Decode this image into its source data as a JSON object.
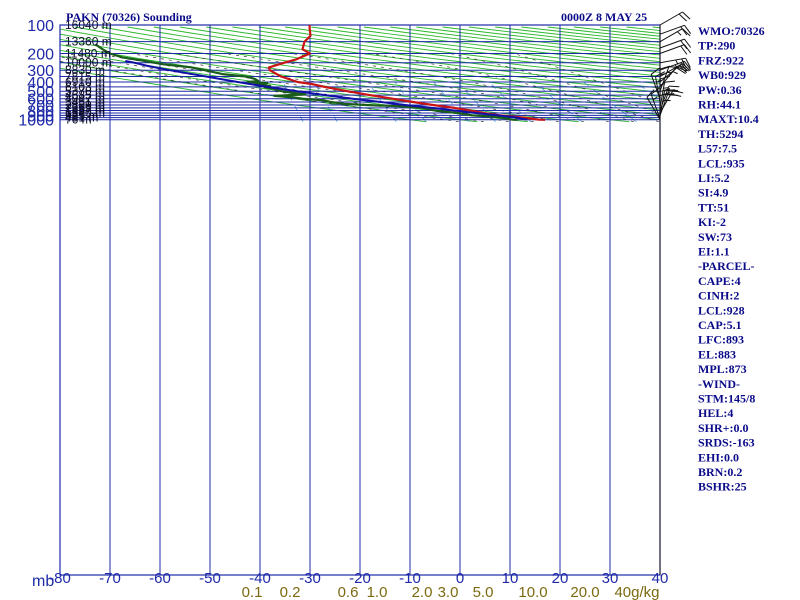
{
  "header": {
    "title": "PAKN (70326) Sounding",
    "time": "0000Z  8 MAY 25"
  },
  "colors": {
    "background": "#ffffff",
    "isobar_isotherm": "#1e2aa8",
    "dry_adiabat": "#2db82d",
    "moist_adiabat": "#3a3a3a",
    "mixing_ratio": "#4fa3d9",
    "temperature": "#c81414",
    "dewpoint": "#1a5c1a",
    "parcel": "#1010a8",
    "wind_barb": "#111111",
    "text": "#0b0b8a"
  },
  "chart_data": {
    "type": "skew-t",
    "title": "PAKN (70326) Sounding",
    "subtitle": "0000Z  8 MAY 25",
    "ylabel": "mb",
    "xlabel": "",
    "pressure_ticks": [
      "100",
      "200",
      "300",
      "400",
      "500",
      "600",
      "700",
      "800",
      "900",
      "1000"
    ],
    "pressure_values": [
      100,
      200,
      300,
      400,
      500,
      600,
      700,
      800,
      900,
      1000
    ],
    "height_levels": [
      {
        "label": "16040 m",
        "p": 100
      },
      {
        "label": "13360 m",
        "p": 150
      },
      {
        "label": "11480 m",
        "p": 200
      },
      {
        "label": "10000 m",
        "p": 250
      },
      {
        "label": "8830 m",
        "p": 300
      },
      {
        "label": "7815 m",
        "p": 350
      },
      {
        "label": "6910 m",
        "p": 400
      },
      {
        "label": "6103 m",
        "p": 450
      },
      {
        "label": "5370 m",
        "p": 500
      },
      {
        "label": "4685 m",
        "p": 550
      },
      {
        "label": "4047 m",
        "p": 600
      },
      {
        "label": "3451 m",
        "p": 650
      },
      {
        "label": "2889 m",
        "p": 700
      },
      {
        "label": "2359 m",
        "p": 750
      },
      {
        "label": "1857 m",
        "p": 800
      },
      {
        "label": "1380 m",
        "p": 850
      },
      {
        "label": "925 m",
        "p": 900
      },
      {
        "label": "491 m",
        "p": 950
      },
      {
        "label": "76 m",
        "p": 1000
      }
    ],
    "temperature_ticks": [
      "-80",
      "-70",
      "-60",
      "-50",
      "-40",
      "-30",
      "-20",
      "-10",
      "0",
      "10",
      "20",
      "30",
      "40"
    ],
    "temperature_values": [
      -80,
      -70,
      -60,
      -50,
      -40,
      -30,
      -20,
      -10,
      0,
      10,
      20,
      30,
      40
    ],
    "mixing_ratio_labels": [
      "0.1",
      "0.2",
      "0.6",
      "1.0",
      "2.0",
      "3.0",
      "5.0",
      "10.0",
      "20.0",
      "40g/kg"
    ],
    "mixing_ratio_values": [
      0.1,
      0.2,
      0.6,
      1.0,
      2.0,
      3.0,
      5.0,
      10.0,
      20.0,
      40.0
    ],
    "axis_ranges": {
      "pressure_mb": [
        100,
        1050
      ],
      "temperature_c": [
        -80,
        40
      ]
    },
    "grid": true,
    "series": [
      {
        "key": "temperature",
        "points": [
          [
            1002,
            7.0
          ],
          [
            1000,
            5.8
          ],
          [
            950,
            2.5
          ],
          [
            925,
            0.0
          ],
          [
            900,
            -2.5
          ],
          [
            850,
            -6.0
          ],
          [
            800,
            -9.0
          ],
          [
            750,
            -12.5
          ],
          [
            700,
            -17.0
          ],
          [
            650,
            -21.5
          ],
          [
            600,
            -26.0
          ],
          [
            550,
            -31.0
          ],
          [
            500,
            -36.0
          ],
          [
            450,
            -41.0
          ],
          [
            420,
            -44.0
          ],
          [
            400,
            -47.0
          ],
          [
            350,
            -51.0
          ],
          [
            300,
            -54.0
          ],
          [
            280,
            -54.5
          ],
          [
            250,
            -52.0
          ],
          [
            230,
            -50.0
          ],
          [
            200,
            -48.0
          ],
          [
            180,
            -50.0
          ],
          [
            150,
            -50.5
          ],
          [
            130,
            -50.0
          ],
          [
            110,
            -51.0
          ],
          [
            100,
            -51.5
          ]
        ]
      },
      {
        "key": "dewpoint",
        "points": [
          [
            1002,
            1.5
          ],
          [
            1000,
            0.5
          ],
          [
            950,
            -2.0
          ],
          [
            925,
            -4.0
          ],
          [
            900,
            -8.0
          ],
          [
            880,
            -9.5
          ],
          [
            850,
            -11.0
          ],
          [
            800,
            -16.0
          ],
          [
            750,
            -19.0
          ],
          [
            720,
            -24.0
          ],
          [
            700,
            -30.0
          ],
          [
            680,
            -35.0
          ],
          [
            650,
            -38.0
          ],
          [
            620,
            -40.0
          ],
          [
            600,
            -44.0
          ],
          [
            580,
            -46.0
          ],
          [
            560,
            -50.0
          ],
          [
            540,
            -44.0
          ],
          [
            510,
            -48.0
          ],
          [
            490,
            -50.0
          ],
          [
            470,
            -51.0
          ],
          [
            455,
            -53.0
          ],
          [
            440,
            -52.0
          ],
          [
            425,
            -55.0
          ],
          [
            410,
            -53.0
          ],
          [
            400,
            -57.0
          ],
          [
            390,
            -55.0
          ],
          [
            370,
            -56.0
          ],
          [
            350,
            -58.0
          ],
          [
            330,
            -63.0
          ],
          [
            300,
            -67.0
          ],
          [
            280,
            -70.0
          ],
          [
            260,
            -76.0
          ],
          [
            240,
            -80.0
          ],
          [
            220,
            -85.0
          ],
          [
            200,
            -88.0
          ],
          [
            180,
            -90.0
          ],
          [
            160,
            -92.0
          ]
        ]
      },
      {
        "key": "parcel",
        "points": [
          [
            1000,
            3.5
          ],
          [
            950,
            1.0
          ],
          [
            928,
            -0.5
          ],
          [
            900,
            -3.0
          ],
          [
            850,
            -7.5
          ],
          [
            800,
            -12.0
          ],
          [
            750,
            -17.0
          ],
          [
            700,
            -22.5
          ],
          [
            650,
            -28.0
          ],
          [
            600,
            -34.0
          ],
          [
            550,
            -40.0
          ],
          [
            500,
            -46.0
          ],
          [
            450,
            -52.5
          ],
          [
            400,
            -59.0
          ],
          [
            350,
            -66.0
          ],
          [
            300,
            -74.0
          ],
          [
            270,
            -79.0
          ],
          [
            250,
            -82.0
          ],
          [
            240,
            -84.0
          ]
        ]
      }
    ],
    "wind_profile": [
      {
        "p": 1000,
        "dir": 150,
        "speed": 10
      },
      {
        "p": 975,
        "dir": 160,
        "speed": 15
      },
      {
        "p": 950,
        "dir": 180,
        "speed": 20
      },
      {
        "p": 925,
        "dir": 190,
        "speed": 25
      },
      {
        "p": 900,
        "dir": 200,
        "speed": 25
      },
      {
        "p": 850,
        "dir": 210,
        "speed": 20
      },
      {
        "p": 800,
        "dir": 200,
        "speed": 20
      },
      {
        "p": 750,
        "dir": 190,
        "speed": 15
      },
      {
        "p": 700,
        "dir": 180,
        "speed": 15
      },
      {
        "p": 650,
        "dir": 170,
        "speed": 15
      },
      {
        "p": 600,
        "dir": 160,
        "speed": 10
      },
      {
        "p": 550,
        "dir": 180,
        "speed": 15
      },
      {
        "p": 500,
        "dir": 200,
        "speed": 15
      },
      {
        "p": 450,
        "dir": 220,
        "speed": 15
      },
      {
        "p": 400,
        "dir": 230,
        "speed": 20
      },
      {
        "p": 350,
        "dir": 240,
        "speed": 20
      },
      {
        "p": 300,
        "dir": 250,
        "speed": 25
      },
      {
        "p": 250,
        "dir": 260,
        "speed": 25
      },
      {
        "p": 200,
        "dir": 250,
        "speed": 20
      },
      {
        "p": 175,
        "dir": 250,
        "speed": 20
      },
      {
        "p": 150,
        "dir": 240,
        "speed": 15
      },
      {
        "p": 125,
        "dir": 250,
        "speed": 20
      },
      {
        "p": 100,
        "dir": 240,
        "speed": 20
      }
    ]
  },
  "indices": [
    "WMO:70326",
    "TP:290",
    "FRZ:922",
    "WB0:929",
    "PW:0.36",
    "RH:44.1",
    "MAXT:10.4",
    "TH:5294",
    "L57:7.5",
    "LCL:935",
    "LI:5.2",
    "SI:4.9",
    "TT:51",
    "KI:-2",
    "SW:73",
    "EI:1.1",
    "-PARCEL-",
    "CAPE:4",
    "CINH:2",
    "LCL:928",
    "CAP:5.1",
    "LFC:893",
    "EL:883",
    "MPL:873",
    "-WIND-",
    "STM:145/8",
    "HEL:4",
    "SHR+:0.0",
    "SRDS:-163",
    "EHI:0.0",
    "BRN:0.2",
    "BSHR:25"
  ]
}
